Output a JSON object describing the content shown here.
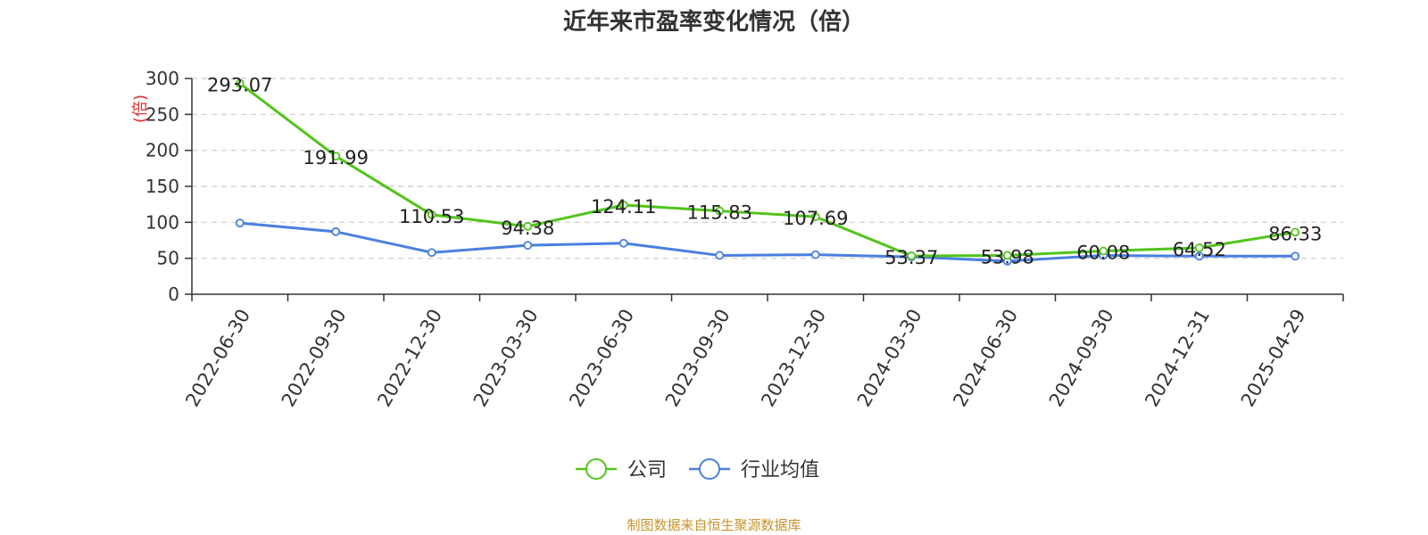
{
  "title": "近年来市盈率变化情况（倍）",
  "footer": "制图数据来自恒生聚源数据库",
  "chart_data": {
    "type": "line",
    "title": "近年来市盈率变化情况（倍）",
    "ylabel": "(倍)",
    "xlabel": "",
    "ylim": [
      0,
      300
    ],
    "yticks": [
      "0",
      "50",
      "100",
      "150",
      "200",
      "250",
      "300"
    ],
    "grid": true,
    "legend_position": "bottom",
    "x": [
      "2022-06-30",
      "2022-09-30",
      "2022-12-30",
      "2023-03-30",
      "2023-06-30",
      "2023-09-30",
      "2023-12-30",
      "2024-03-30",
      "2024-06-30",
      "2024-09-30",
      "2024-12-31",
      "2025-04-29"
    ],
    "series": [
      {
        "name": "公司",
        "color": "#52c41a",
        "values": [
          293.07,
          191.99,
          110.53,
          94.38,
          124.11,
          115.83,
          107.69,
          53.37,
          53.98,
          60.08,
          64.52,
          86.33
        ],
        "labels": [
          "293.07",
          "191.99",
          "110.53",
          "94.38",
          "124.11",
          "115.83",
          "107.69",
          "53.37",
          "53.98",
          "60.08",
          "64.52",
          "86.33"
        ]
      },
      {
        "name": "行业均值",
        "color": "#4a7fe0",
        "values": [
          99,
          87,
          58,
          68,
          71,
          54,
          55,
          52,
          46,
          54,
          53,
          53
        ]
      }
    ]
  }
}
